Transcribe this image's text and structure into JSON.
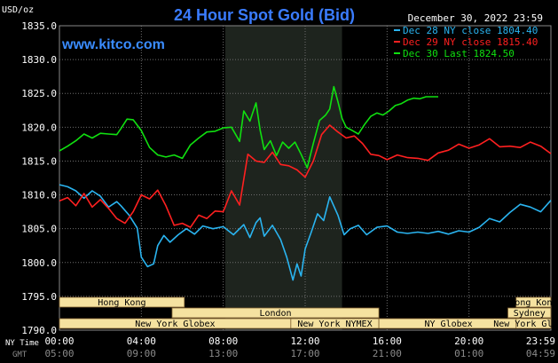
{
  "header": {
    "unit": "USD/oz",
    "title": "24 Hour Spot Gold (Bid)",
    "site": "www.kitco.com",
    "datetime": "December 30, 2022 23:59"
  },
  "colors": {
    "background": "#000000",
    "title": "#3a7cff",
    "site": "#3a8cff",
    "grid": "#6e6e6e",
    "axis_text": "#ffffff",
    "secondary_axis_text": "#8a8a8a",
    "session_fill": "#f5e2a0",
    "session_text": "#000000",
    "highlight_band": "#1e241e"
  },
  "legend": {
    "position": "top-right",
    "items": [
      {
        "label": "Dec 28 NY close 1804.40",
        "color": "#2ab4f0"
      },
      {
        "label": "Dec 29 NY close 1815.40",
        "color": "#ff2020"
      },
      {
        "label": "Dec 30 Last 1824.50",
        "color": "#10e010"
      }
    ]
  },
  "axis_labels": {
    "ny_time": "NY Time",
    "gmt": "GMT"
  },
  "sessions": [
    {
      "name": "Hong Kong",
      "start": 0,
      "end": 6.1,
      "row": 0
    },
    {
      "name": "London",
      "start": 5.5,
      "end": 15.6,
      "row": 1
    },
    {
      "name": "New York Globex",
      "start": 0,
      "end": 11.3,
      "row": 2
    },
    {
      "name": "New York NYMEX",
      "start": 11.3,
      "end": 15.6,
      "row": 2
    },
    {
      "name": "NY Globex",
      "start": 15.6,
      "end": 22.4,
      "row": 2
    },
    {
      "name": "Hong Kong",
      "start": 22.3,
      "end": 24,
      "row": 0
    },
    {
      "name": "Sydney",
      "start": 21.9,
      "end": 24,
      "row": 1
    },
    {
      "name": "New York Globex",
      "start": 22.3,
      "end": 24,
      "row": 2
    }
  ],
  "chart_data": {
    "type": "line",
    "title": "24 Hour Spot Gold (Bid)",
    "ylabel": "USD/oz",
    "xlim": [
      0,
      24
    ],
    "ylim": [
      1790,
      1835
    ],
    "grid": true,
    "highlight_band": [
      8.1,
      13.8
    ],
    "yticks": [
      "1790.0",
      "1795.0",
      "1800.0",
      "1805.0",
      "1810.0",
      "1815.0",
      "1820.0",
      "1825.0",
      "1830.0",
      "1835.0"
    ],
    "ytick_values": [
      1790,
      1795,
      1800,
      1805,
      1810,
      1815,
      1820,
      1825,
      1830,
      1835
    ],
    "xticks_ny": [
      "00:00",
      "04:00",
      "08:00",
      "12:00",
      "16:00",
      "20:00",
      "23:59"
    ],
    "xticks_gmt": [
      "05:00",
      "09:00",
      "13:00",
      "17:00",
      "21:00",
      "01:00",
      "04:59"
    ],
    "xtick_values": [
      0,
      4,
      8,
      12,
      16,
      20,
      24
    ],
    "series": [
      {
        "name": "Dec 28 NY close 1804.40",
        "color": "#2ab4f0",
        "x": [
          0,
          0.4,
          0.8,
          1.2,
          1.6,
          2.0,
          2.4,
          2.8,
          3.0,
          3.4,
          3.8,
          4.0,
          4.3,
          4.6,
          4.8,
          5.1,
          5.4,
          5.8,
          6.2,
          6.6,
          7.0,
          7.5,
          8.0,
          8.5,
          9.0,
          9.3,
          9.6,
          9.8,
          10.0,
          10.4,
          10.8,
          11.1,
          11.4,
          11.6,
          11.8,
          12.0,
          12.3,
          12.6,
          12.9,
          13.2,
          13.6,
          13.9,
          14.2,
          14.6,
          15.0,
          15.5,
          16.0,
          16.5,
          17.0,
          17.5,
          18.0,
          18.5,
          19.0,
          19.5,
          20.0,
          20.5,
          21.0,
          21.5,
          22.0,
          22.5,
          23.0,
          23.5,
          24.0
        ],
        "y": [
          1811.5,
          1811.2,
          1810.6,
          1809.5,
          1810.6,
          1809.8,
          1808.2,
          1809.0,
          1808.4,
          1807.0,
          1805.1,
          1800.8,
          1799.4,
          1799.8,
          1802.5,
          1804.0,
          1803.0,
          1804.1,
          1805.0,
          1804.2,
          1805.4,
          1805.0,
          1805.3,
          1804.1,
          1805.6,
          1803.7,
          1805.9,
          1806.6,
          1803.9,
          1805.5,
          1803.4,
          1800.8,
          1797.4,
          1799.8,
          1798.0,
          1802.0,
          1804.5,
          1807.2,
          1806.2,
          1809.7,
          1807.0,
          1804.1,
          1805.0,
          1805.5,
          1804.1,
          1805.2,
          1805.4,
          1804.5,
          1804.3,
          1804.5,
          1804.3,
          1804.6,
          1804.2,
          1804.7,
          1804.5,
          1805.2,
          1806.5,
          1806.0,
          1807.4,
          1808.6,
          1808.2,
          1807.5,
          1809.2
        ]
      },
      {
        "name": "Dec 29 NY close 1815.40",
        "color": "#ff2020",
        "x": [
          0,
          0.4,
          0.8,
          1.2,
          1.6,
          2.0,
          2.4,
          2.8,
          3.2,
          3.6,
          4.0,
          4.4,
          4.8,
          5.2,
          5.6,
          6.0,
          6.4,
          6.8,
          7.2,
          7.6,
          8.0,
          8.4,
          8.8,
          9.2,
          9.6,
          10.0,
          10.4,
          10.8,
          11.2,
          11.6,
          12.0,
          12.4,
          12.8,
          13.2,
          13.6,
          14.0,
          14.4,
          14.8,
          15.2,
          15.6,
          16.0,
          16.5,
          17.0,
          17.5,
          18.0,
          18.5,
          19.0,
          19.5,
          20.0,
          20.5,
          21.0,
          21.5,
          22.0,
          22.5,
          23.0,
          23.5,
          24.0
        ],
        "y": [
          1809.1,
          1809.6,
          1808.4,
          1810.2,
          1808.2,
          1809.3,
          1808.0,
          1806.5,
          1805.8,
          1807.5,
          1810.0,
          1809.4,
          1810.7,
          1808.4,
          1805.5,
          1805.8,
          1805.2,
          1807.0,
          1806.5,
          1807.6,
          1807.5,
          1810.6,
          1808.5,
          1816.0,
          1815.0,
          1814.8,
          1816.3,
          1814.5,
          1814.3,
          1813.7,
          1812.6,
          1815.0,
          1818.9,
          1820.3,
          1819.3,
          1818.4,
          1818.7,
          1817.6,
          1816.0,
          1815.8,
          1815.2,
          1815.9,
          1815.5,
          1815.4,
          1815.1,
          1816.2,
          1816.6,
          1817.5,
          1816.9,
          1817.4,
          1818.3,
          1817.1,
          1817.2,
          1817.0,
          1817.8,
          1817.2,
          1816.1
        ]
      },
      {
        "name": "Dec 30 Last 1824.50",
        "color": "#10e010",
        "x": [
          0,
          0.4,
          0.8,
          1.2,
          1.6,
          2.0,
          2.4,
          2.8,
          3.0,
          3.3,
          3.6,
          4.0,
          4.4,
          4.8,
          5.2,
          5.6,
          6.0,
          6.4,
          6.8,
          7.2,
          7.6,
          8.0,
          8.4,
          8.8,
          9.0,
          9.3,
          9.6,
          9.8,
          10.0,
          10.3,
          10.6,
          10.9,
          11.2,
          11.5,
          11.8,
          12.1,
          12.4,
          12.7,
          13.0,
          13.2,
          13.4,
          13.6,
          13.8,
          14.0,
          14.3,
          14.6,
          14.9,
          15.2,
          15.5,
          15.8,
          16.1,
          16.4,
          16.7,
          17.0,
          17.3,
          17.6,
          17.9,
          18.2,
          18.5
        ],
        "y": [
          1816.5,
          1817.2,
          1818.0,
          1819.0,
          1818.4,
          1819.1,
          1819.0,
          1818.9,
          1819.8,
          1821.2,
          1821.1,
          1819.5,
          1817.0,
          1815.9,
          1815.6,
          1815.9,
          1815.4,
          1817.4,
          1818.4,
          1819.3,
          1819.4,
          1819.9,
          1820.0,
          1817.9,
          1822.4,
          1820.9,
          1823.6,
          1819.6,
          1816.7,
          1818.0,
          1815.8,
          1817.8,
          1816.9,
          1817.8,
          1816.0,
          1814.0,
          1817.6,
          1821.0,
          1821.8,
          1822.7,
          1826.0,
          1823.8,
          1821.3,
          1820.0,
          1819.5,
          1819.0,
          1820.4,
          1821.6,
          1822.1,
          1821.8,
          1822.4,
          1823.2,
          1823.5,
          1824.0,
          1824.3,
          1824.2,
          1824.5,
          1824.5,
          1824.5
        ]
      }
    ]
  }
}
